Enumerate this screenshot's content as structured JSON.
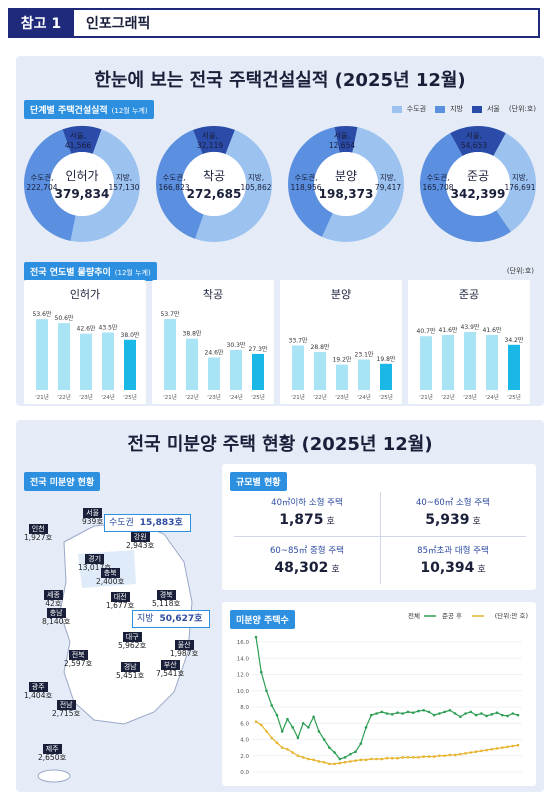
{
  "header": {
    "tag": "참고 1",
    "title": "인포그래픽"
  },
  "section1": {
    "title": "한눈에 보는 전국 주택건설실적 (2025년 12월)",
    "stage_badge": "단계별 주택건설실적",
    "stage_badge_note": "(12월 누계)",
    "legend": [
      "수도권",
      "지방",
      "서울",
      "(단위:호)"
    ],
    "legend_colors": [
      "#9cc3f0",
      "#5b8fe0",
      "#6a9ae3",
      "#2a4ba8"
    ],
    "trend_badge": "전국 연도별 물량추이",
    "trend_badge_note": "(12월 누계)",
    "trend_unit": "(단위:호)"
  },
  "donuts": [
    {
      "name": "인허가",
      "total": "379,834",
      "seoul_label": "서울,",
      "seoul": "41,566",
      "capital_label": "수도권,",
      "capital": "222,704",
      "local_label": "지방,",
      "local": "157,130",
      "capital_v": 222704,
      "local_v": 157130,
      "seoul_v": 41566
    },
    {
      "name": "착공",
      "total": "272,685",
      "seoul_label": "서울,",
      "seoul": "32,119",
      "capital_label": "수도권,",
      "capital": "166,823",
      "local_label": "지방,",
      "local": "105,862",
      "capital_v": 166823,
      "local_v": 105862,
      "seoul_v": 32119
    },
    {
      "name": "분양",
      "total": "198,373",
      "seoul_label": "서울,",
      "seoul": "12,654",
      "capital_label": "수도권,",
      "capital": "118,956",
      "local_label": "지방,",
      "local": "79,417",
      "capital_v": 118956,
      "local_v": 79417,
      "seoul_v": 12654
    },
    {
      "name": "준공",
      "total": "342,399",
      "seoul_label": "서울,",
      "seoul": "54,653",
      "capital_label": "수도권,",
      "capital": "165,708",
      "local_label": "지방,",
      "local": "176,691",
      "capital_v": 165708,
      "local_v": 176691,
      "seoul_v": 54653
    }
  ],
  "chart_data": [
    {
      "type": "bar",
      "title": "인허가",
      "categories": [
        "'21년",
        "'22년",
        "'23년",
        "'24년",
        "'25년"
      ],
      "values": [
        53.6,
        50.6,
        42.6,
        43.5,
        38.0
      ],
      "value_labels": [
        "53.6만",
        "50.6만",
        "42.6만",
        "43.5만",
        "38.0만"
      ],
      "ylim": [
        0,
        60
      ]
    },
    {
      "type": "bar",
      "title": "착공",
      "categories": [
        "'21년",
        "'22년",
        "'23년",
        "'24년",
        "'25년"
      ],
      "values": [
        53.7,
        38.8,
        24.6,
        30.3,
        27.3
      ],
      "value_labels": [
        "53.7만",
        "38.8만",
        "24.6만",
        "30.3만",
        "27.3만"
      ],
      "ylim": [
        0,
        60
      ]
    },
    {
      "type": "bar",
      "title": "분양",
      "categories": [
        "'21년",
        "'22년",
        "'23년",
        "'24년",
        "'25년"
      ],
      "values": [
        33.7,
        28.8,
        19.2,
        23.1,
        19.8
      ],
      "value_labels": [
        "33.7만",
        "28.8만",
        "19.2만",
        "23.1만",
        "19.8만"
      ],
      "ylim": [
        0,
        40
      ]
    },
    {
      "type": "bar",
      "title": "준공",
      "categories": [
        "'21년",
        "'22년",
        "'23년",
        "'24년",
        "'25년"
      ],
      "values": [
        40.7,
        41.6,
        43.9,
        41.6,
        34.2
      ],
      "value_labels": [
        "40.7만",
        "41.6만",
        "43.9만",
        "41.6만",
        "34.2만"
      ],
      "ylim": [
        0,
        50
      ]
    },
    {
      "type": "line",
      "title": "미분양 주택수",
      "unit": "(단위:만 호)",
      "ylim": [
        0,
        16
      ],
      "yticks": [
        "0.0",
        "2.0",
        "4.0",
        "6.0",
        "8.0",
        "10.0",
        "12.0",
        "14.0",
        "16.0"
      ],
      "series": [
        {
          "name": "전체",
          "color": "#2e9e55",
          "values": [
            16.6,
            12.3,
            10.0,
            8.2,
            7.0,
            5.0,
            6.5,
            5.5,
            4.2,
            6.0,
            5.5,
            6.8,
            5.0,
            4.0,
            3.0,
            2.4,
            1.6,
            1.8,
            2.2,
            2.5,
            3.5,
            5.5,
            7.0,
            7.2,
            7.4,
            7.2,
            7.1,
            7.3,
            7.2,
            7.4,
            7.3,
            7.5,
            7.6,
            7.4,
            7.0,
            7.2,
            7.4,
            7.6,
            7.2,
            6.8,
            7.2,
            7.4,
            7.0,
            7.2,
            6.9,
            7.1,
            7.3,
            7.0,
            6.9,
            7.2,
            7.0
          ]
        },
        {
          "name": "준공 후",
          "color": "#e6b42e",
          "values": [
            6.2,
            5.8,
            5.0,
            4.2,
            3.6,
            3.0,
            2.8,
            2.4,
            2.0,
            1.8,
            1.6,
            1.5,
            1.3,
            1.2,
            1.0,
            1.0,
            1.1,
            1.2,
            1.3,
            1.4,
            1.5,
            1.5,
            1.6,
            1.6,
            1.6,
            1.7,
            1.7,
            1.7,
            1.8,
            1.8,
            1.8,
            1.8,
            1.9,
            1.9,
            1.9,
            2.0,
            2.0,
            2.1,
            2.1,
            2.2,
            2.3,
            2.4,
            2.5,
            2.6,
            2.7,
            2.8,
            2.9,
            3.0,
            3.1,
            3.2,
            3.3
          ]
        }
      ]
    }
  ],
  "section2": {
    "title": "전국 미분양 주택 현황 (2025년 12월)",
    "map_badge": "전국 미분양 현황",
    "size_badge": "규모별 현황",
    "line_badge": "미분양 주택수",
    "capital_label": "수도권",
    "capital_value": "15,883호",
    "local_label": "지방",
    "local_value": "50,627호"
  },
  "regions": [
    {
      "name": "서울",
      "value": "939호"
    },
    {
      "name": "인천",
      "value": "1,927호"
    },
    {
      "name": "경기",
      "value": "13,017호"
    },
    {
      "name": "강원",
      "value": "2,943호"
    },
    {
      "name": "충북",
      "value": "2,400호"
    },
    {
      "name": "세종",
      "value": "42호"
    },
    {
      "name": "충남",
      "value": "8,140호"
    },
    {
      "name": "대전",
      "value": "1,677호"
    },
    {
      "name": "경북",
      "value": "5,118호"
    },
    {
      "name": "대구",
      "value": "5,962호"
    },
    {
      "name": "울산",
      "value": "1,987호"
    },
    {
      "name": "전북",
      "value": "2,597호"
    },
    {
      "name": "경남",
      "value": "5,451호"
    },
    {
      "name": "부산",
      "value": "7,541호"
    },
    {
      "name": "광주",
      "value": "1,404호"
    },
    {
      "name": "전남",
      "value": "2,715호"
    },
    {
      "name": "제주",
      "value": "2,650호"
    }
  ],
  "sizes": [
    {
      "label": "40㎡이하 소형 주택",
      "value": "1,875",
      "unit": "호"
    },
    {
      "label": "40~60㎡ 소형 주택",
      "value": "5,939",
      "unit": "호"
    },
    {
      "label": "60~85㎡ 중형 주택",
      "value": "48,302",
      "unit": "호"
    },
    {
      "label": "85㎡초과 대형 주택",
      "value": "10,394",
      "unit": "호"
    }
  ]
}
